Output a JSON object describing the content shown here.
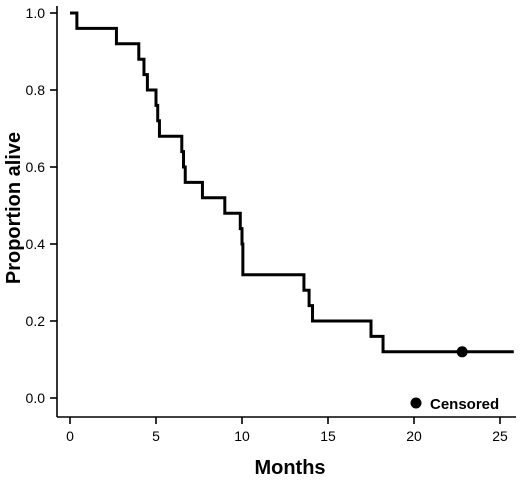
{
  "chart_data": {
    "type": "line",
    "subtype": "kaplan-meier survival curve",
    "xlabel": "Months",
    "ylabel": "Proportion alive",
    "xlim": [
      0,
      26
    ],
    "ylim": [
      -0.05,
      1.03
    ],
    "xticks": [
      0,
      5,
      10,
      15,
      20,
      25
    ],
    "xtick_labels": [
      "0",
      "5",
      "10",
      "15",
      "20",
      "25"
    ],
    "yticks": [
      0.0,
      0.2,
      0.4,
      0.6,
      0.8,
      1.0
    ],
    "ytick_labels": [
      "0.0",
      "0.2",
      "0.4",
      "0.6",
      "0.8",
      "1.0"
    ],
    "grid": false,
    "series": [
      {
        "steps": [
          {
            "x": 0.0,
            "y": 1.0
          },
          {
            "x": 0.4,
            "y": 0.96
          },
          {
            "x": 2.7,
            "y": 0.92
          },
          {
            "x": 4.0,
            "y": 0.88
          },
          {
            "x": 4.3,
            "y": 0.84
          },
          {
            "x": 4.5,
            "y": 0.8
          },
          {
            "x": 5.0,
            "y": 0.76
          },
          {
            "x": 5.1,
            "y": 0.72
          },
          {
            "x": 5.2,
            "y": 0.68
          },
          {
            "x": 6.5,
            "y": 0.64
          },
          {
            "x": 6.6,
            "y": 0.6
          },
          {
            "x": 6.7,
            "y": 0.56
          },
          {
            "x": 7.7,
            "y": 0.52
          },
          {
            "x": 9.0,
            "y": 0.48
          },
          {
            "x": 9.9,
            "y": 0.44
          },
          {
            "x": 10.0,
            "y": 0.4
          },
          {
            "x": 10.05,
            "y": 0.32
          },
          {
            "x": 13.6,
            "y": 0.28
          },
          {
            "x": 13.9,
            "y": 0.24
          },
          {
            "x": 14.1,
            "y": 0.2
          },
          {
            "x": 17.5,
            "y": 0.16
          },
          {
            "x": 18.2,
            "y": 0.12
          }
        ],
        "end_x": 25.8,
        "censored": [
          {
            "x": 22.8,
            "y": 0.12
          }
        ]
      }
    ],
    "legend": {
      "label": "Censored",
      "position": "bottom-right",
      "marker": "filled-circle"
    }
  }
}
